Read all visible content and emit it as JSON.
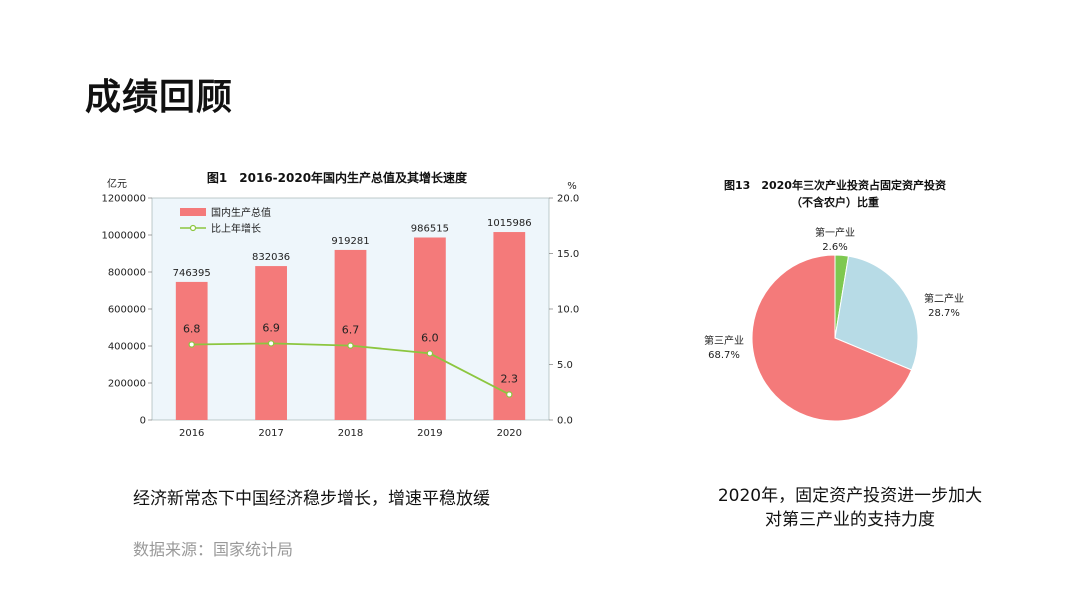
{
  "page": {
    "title": "成绩回顾",
    "left_caption": "经济新常态下中国经济稳步增长，增速平稳放缓",
    "source_note": "数据来源：国家统计局",
    "right_caption_line1": "2020年，固定资产投资进一步加大",
    "right_caption_line2": "对第三产业的支持力度"
  },
  "chart_data": [
    {
      "type": "bar",
      "title": "图1　2016-2020年国内生产总值及其增长速度",
      "ylabel": "亿元",
      "y2label": "%",
      "categories": [
        "2016",
        "2017",
        "2018",
        "2019",
        "2020"
      ],
      "series": [
        {
          "name": "国内生产总值",
          "type": "bar",
          "axis": "left",
          "values": [
            746395,
            832036,
            919281,
            986515,
            1015986
          ],
          "labels": [
            "746395",
            "832036",
            "919281",
            "986515",
            "1015986"
          ],
          "color": "#f47a7a"
        },
        {
          "name": "比上年增长",
          "type": "line",
          "axis": "right",
          "values": [
            6.8,
            6.9,
            6.7,
            6.0,
            2.3
          ],
          "labels": [
            "6.8",
            "6.9",
            "6.7",
            "6.0",
            "2.3"
          ],
          "color": "#8cc63f"
        }
      ],
      "ylim": [
        0,
        1200000
      ],
      "yticks": [
        "0",
        "200000",
        "400000",
        "600000",
        "800000",
        "1000000",
        "1200000"
      ],
      "y2lim": [
        0,
        20
      ],
      "y2ticks": [
        "0.0",
        "5.0",
        "10.0",
        "15.0",
        "20.0"
      ],
      "legend": "top-left",
      "background": "#eef6fb"
    },
    {
      "type": "pie",
      "title_line1": "图13　2020年三次产业投资占固定资产投资",
      "title_line2": "（不含农户）比重",
      "slices": [
        {
          "name": "第一产业",
          "value": 2.6,
          "label": "2.6%",
          "color": "#7ec850"
        },
        {
          "name": "第二产业",
          "value": 28.7,
          "label": "28.7%",
          "color": "#b7dbe6"
        },
        {
          "name": "第三产业",
          "value": 68.7,
          "label": "68.7%",
          "color": "#f47a7a"
        }
      ]
    }
  ]
}
